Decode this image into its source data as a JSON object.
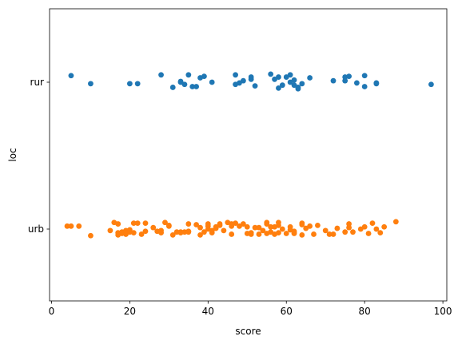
{
  "chart_data": {
    "type": "scatter",
    "title": "",
    "xlabel": "score",
    "ylabel": "loc",
    "xlim": [
      -0.5,
      101
    ],
    "x_ticks": [
      0,
      20,
      40,
      60,
      80,
      100
    ],
    "categories": [
      "rur",
      "urb"
    ],
    "grid": false,
    "legend": "none",
    "series": [
      {
        "color": "#1f77b4",
        "category": "rur",
        "points": [
          {
            "x": 5,
            "j": 0.09
          },
          {
            "x": 10,
            "j": -0.02
          },
          {
            "x": 20,
            "j": -0.02
          },
          {
            "x": 22,
            "j": -0.02
          },
          {
            "x": 28,
            "j": 0.1
          },
          {
            "x": 31,
            "j": -0.07
          },
          {
            "x": 33,
            "j": 0.01
          },
          {
            "x": 33,
            "j": 0.0
          },
          {
            "x": 34,
            "j": -0.03
          },
          {
            "x": 35,
            "j": 0.1
          },
          {
            "x": 36,
            "j": -0.06
          },
          {
            "x": 37,
            "j": -0.06
          },
          {
            "x": 38,
            "j": 0.06
          },
          {
            "x": 39,
            "j": 0.08
          },
          {
            "x": 41,
            "j": 0.0
          },
          {
            "x": 47,
            "j": 0.1
          },
          {
            "x": 47,
            "j": -0.03
          },
          {
            "x": 48,
            "j": -0.01
          },
          {
            "x": 49,
            "j": 0.02
          },
          {
            "x": 51,
            "j": 0.04
          },
          {
            "x": 51,
            "j": 0.07
          },
          {
            "x": 52,
            "j": -0.05
          },
          {
            "x": 56,
            "j": 0.11
          },
          {
            "x": 57,
            "j": 0.04
          },
          {
            "x": 58,
            "j": 0.07
          },
          {
            "x": 58,
            "j": -0.08
          },
          {
            "x": 59,
            "j": -0.04
          },
          {
            "x": 60,
            "j": 0.07
          },
          {
            "x": 61,
            "j": 0.1
          },
          {
            "x": 61,
            "j": 0.0
          },
          {
            "x": 62,
            "j": 0.03
          },
          {
            "x": 62,
            "j": -0.04
          },
          {
            "x": 63,
            "j": -0.07
          },
          {
            "x": 63,
            "j": -0.09
          },
          {
            "x": 64,
            "j": -0.02
          },
          {
            "x": 66,
            "j": 0.06
          },
          {
            "x": 72,
            "j": 0.02
          },
          {
            "x": 75,
            "j": 0.07
          },
          {
            "x": 75,
            "j": 0.02
          },
          {
            "x": 76,
            "j": 0.08
          },
          {
            "x": 78,
            "j": -0.01
          },
          {
            "x": 80,
            "j": 0.09
          },
          {
            "x": 80,
            "j": -0.06
          },
          {
            "x": 83,
            "j": -0.01
          },
          {
            "x": 83,
            "j": -0.02
          },
          {
            "x": 97,
            "j": -0.03
          }
        ]
      },
      {
        "color": "#ff7f0e",
        "category": "urb",
        "points": [
          {
            "x": 4,
            "j": 0.04
          },
          {
            "x": 5,
            "j": 0.04
          },
          {
            "x": 7,
            "j": 0.04
          },
          {
            "x": 10,
            "j": -0.09
          },
          {
            "x": 15,
            "j": -0.02
          },
          {
            "x": 16,
            "j": 0.09
          },
          {
            "x": 17,
            "j": -0.05
          },
          {
            "x": 17,
            "j": -0.08
          },
          {
            "x": 17,
            "j": 0.07
          },
          {
            "x": 18,
            "j": -0.04
          },
          {
            "x": 18,
            "j": -0.06
          },
          {
            "x": 19,
            "j": -0.04
          },
          {
            "x": 19,
            "j": -0.07
          },
          {
            "x": 19,
            "j": -0.02
          },
          {
            "x": 20,
            "j": -0.01
          },
          {
            "x": 20,
            "j": -0.04
          },
          {
            "x": 21,
            "j": 0.08
          },
          {
            "x": 21,
            "j": -0.05
          },
          {
            "x": 22,
            "j": 0.08
          },
          {
            "x": 23,
            "j": -0.07
          },
          {
            "x": 24,
            "j": -0.03
          },
          {
            "x": 24,
            "j": 0.08
          },
          {
            "x": 26,
            "j": 0.02
          },
          {
            "x": 27,
            "j": -0.03
          },
          {
            "x": 28,
            "j": -0.02
          },
          {
            "x": 28,
            "j": -0.05
          },
          {
            "x": 29,
            "j": 0.09
          },
          {
            "x": 30,
            "j": 0.05
          },
          {
            "x": 30,
            "j": 0.04
          },
          {
            "x": 31,
            "j": -0.08
          },
          {
            "x": 32,
            "j": -0.04
          },
          {
            "x": 33,
            "j": -0.04
          },
          {
            "x": 33,
            "j": -0.05
          },
          {
            "x": 34,
            "j": -0.04
          },
          {
            "x": 35,
            "j": -0.04
          },
          {
            "x": 35,
            "j": 0.07
          },
          {
            "x": 35,
            "j": -0.03
          },
          {
            "x": 37,
            "j": 0.06
          },
          {
            "x": 38,
            "j": -0.08
          },
          {
            "x": 38,
            "j": 0.02
          },
          {
            "x": 39,
            "j": -0.04
          },
          {
            "x": 40,
            "j": 0.07
          },
          {
            "x": 40,
            "j": 0.04
          },
          {
            "x": 40,
            "j": 0.0
          },
          {
            "x": 41,
            "j": -0.05
          },
          {
            "x": 41,
            "j": -0.02
          },
          {
            "x": 42,
            "j": 0.03
          },
          {
            "x": 42,
            "j": 0.01
          },
          {
            "x": 43,
            "j": 0.07
          },
          {
            "x": 43,
            "j": 0.05
          },
          {
            "x": 44,
            "j": -0.02
          },
          {
            "x": 45,
            "j": 0.09
          },
          {
            "x": 46,
            "j": 0.07
          },
          {
            "x": 46,
            "j": 0.04
          },
          {
            "x": 46,
            "j": -0.07
          },
          {
            "x": 47,
            "j": 0.08
          },
          {
            "x": 48,
            "j": 0.04
          },
          {
            "x": 49,
            "j": 0.07
          },
          {
            "x": 50,
            "j": 0.03
          },
          {
            "x": 50,
            "j": -0.06
          },
          {
            "x": 51,
            "j": -0.05
          },
          {
            "x": 51,
            "j": -0.07
          },
          {
            "x": 52,
            "j": 0.02
          },
          {
            "x": 53,
            "j": 0.02
          },
          {
            "x": 53,
            "j": -0.07
          },
          {
            "x": 54,
            "j": -0.02
          },
          {
            "x": 55,
            "j": 0.09
          },
          {
            "x": 55,
            "j": -0.06
          },
          {
            "x": 55,
            "j": 0.07
          },
          {
            "x": 56,
            "j": 0.03
          },
          {
            "x": 56,
            "j": -0.04
          },
          {
            "x": 57,
            "j": 0.03
          },
          {
            "x": 57,
            "j": -0.07
          },
          {
            "x": 58,
            "j": 0.09
          },
          {
            "x": 58,
            "j": 0.05
          },
          {
            "x": 58,
            "j": -0.05
          },
          {
            "x": 59,
            "j": 0.0
          },
          {
            "x": 60,
            "j": -0.06
          },
          {
            "x": 61,
            "j": 0.03
          },
          {
            "x": 61,
            "j": -0.01
          },
          {
            "x": 62,
            "j": -0.03
          },
          {
            "x": 62,
            "j": -0.05
          },
          {
            "x": 62,
            "j": -0.06
          },
          {
            "x": 64,
            "j": 0.08
          },
          {
            "x": 64,
            "j": -0.08
          },
          {
            "x": 64,
            "j": 0.06
          },
          {
            "x": 65,
            "j": 0.01
          },
          {
            "x": 66,
            "j": 0.04
          },
          {
            "x": 67,
            "j": -0.07
          },
          {
            "x": 68,
            "j": 0.05
          },
          {
            "x": 70,
            "j": -0.02
          },
          {
            "x": 71,
            "j": -0.07
          },
          {
            "x": 72,
            "j": -0.07
          },
          {
            "x": 73,
            "j": 0.01
          },
          {
            "x": 75,
            "j": -0.04
          },
          {
            "x": 76,
            "j": 0.07
          },
          {
            "x": 76,
            "j": 0.02
          },
          {
            "x": 77,
            "j": -0.04
          },
          {
            "x": 79,
            "j": 0.0
          },
          {
            "x": 80,
            "j": 0.03
          },
          {
            "x": 81,
            "j": -0.06
          },
          {
            "x": 82,
            "j": 0.08
          },
          {
            "x": 83,
            "j": 0.0
          },
          {
            "x": 84,
            "j": -0.05
          },
          {
            "x": 85,
            "j": 0.03
          },
          {
            "x": 88,
            "j": 0.1
          }
        ]
      }
    ]
  }
}
